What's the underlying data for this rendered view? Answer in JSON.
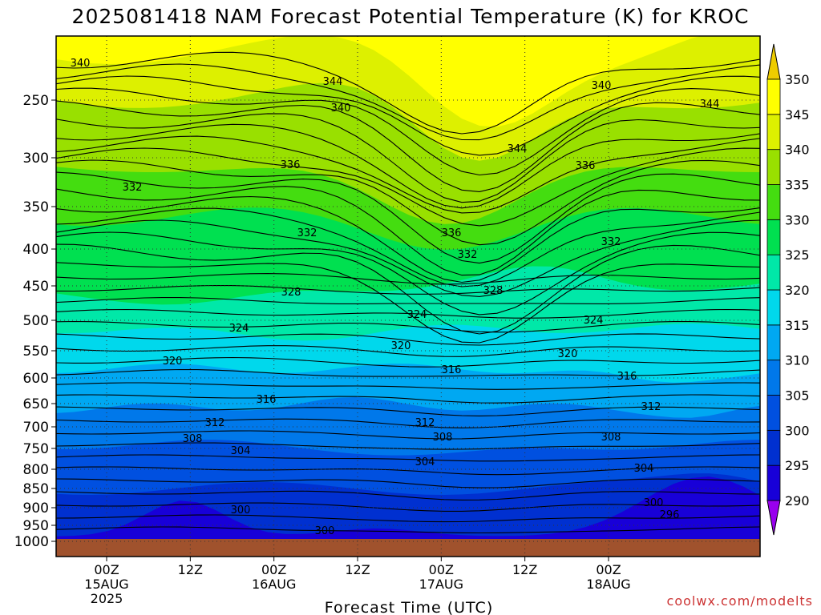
{
  "chart_data": {
    "type": "heatmap",
    "title": "2025081418 NAM Forecast Potential Temperature (K) for KROC",
    "xlabel": "Forecast Time (UTC)",
    "credit": "coolwx.com/modelts",
    "y_ticks": [
      "250",
      "300",
      "350",
      "400",
      "450",
      "500",
      "550",
      "600",
      "650",
      "700",
      "750",
      "800",
      "850",
      "900",
      "950",
      "1000"
    ],
    "x_ticks": [
      {
        "hours": 6,
        "l1": "00Z",
        "l2": "15AUG",
        "l3": "2025"
      },
      {
        "hours": 18,
        "l1": "12Z",
        "l2": "",
        "l3": ""
      },
      {
        "hours": 30,
        "l1": "00Z",
        "l2": "16AUG",
        "l3": ""
      },
      {
        "hours": 42,
        "l1": "12Z",
        "l2": "",
        "l3": ""
      },
      {
        "hours": 54,
        "l1": "00Z",
        "l2": "17AUG",
        "l3": ""
      },
      {
        "hours": 66,
        "l1": "12Z",
        "l2": "",
        "l3": ""
      },
      {
        "hours": 78,
        "l1": "00Z",
        "l2": "18AUG",
        "l3": ""
      }
    ],
    "colorbar": {
      "levels": [
        290,
        295,
        300,
        305,
        310,
        315,
        320,
        325,
        330,
        335,
        340,
        345,
        350
      ],
      "colors": [
        "#4400ee",
        "#1800d8",
        "#0030d0",
        "#0050e0",
        "#0078ea",
        "#00a8f2",
        "#00d8ec",
        "#00e8a8",
        "#00e050",
        "#44dd10",
        "#99e000",
        "#ddf000",
        "#ffff00"
      ],
      "overflow_low": "#9900ee",
      "overflow_high": "#eecc00"
    },
    "contour_labels": [
      "340",
      "344",
      "340",
      "344",
      "340",
      "344",
      "336",
      "336",
      "332",
      "332",
      "336",
      "332",
      "332",
      "328",
      "328",
      "324",
      "324",
      "324",
      "320",
      "320",
      "320",
      "316",
      "316",
      "316",
      "312",
      "312",
      "312",
      "308",
      "308",
      "308",
      "304",
      "304",
      "304",
      "300",
      "300",
      "300",
      "296"
    ],
    "ground_color": "#a0522d"
  }
}
